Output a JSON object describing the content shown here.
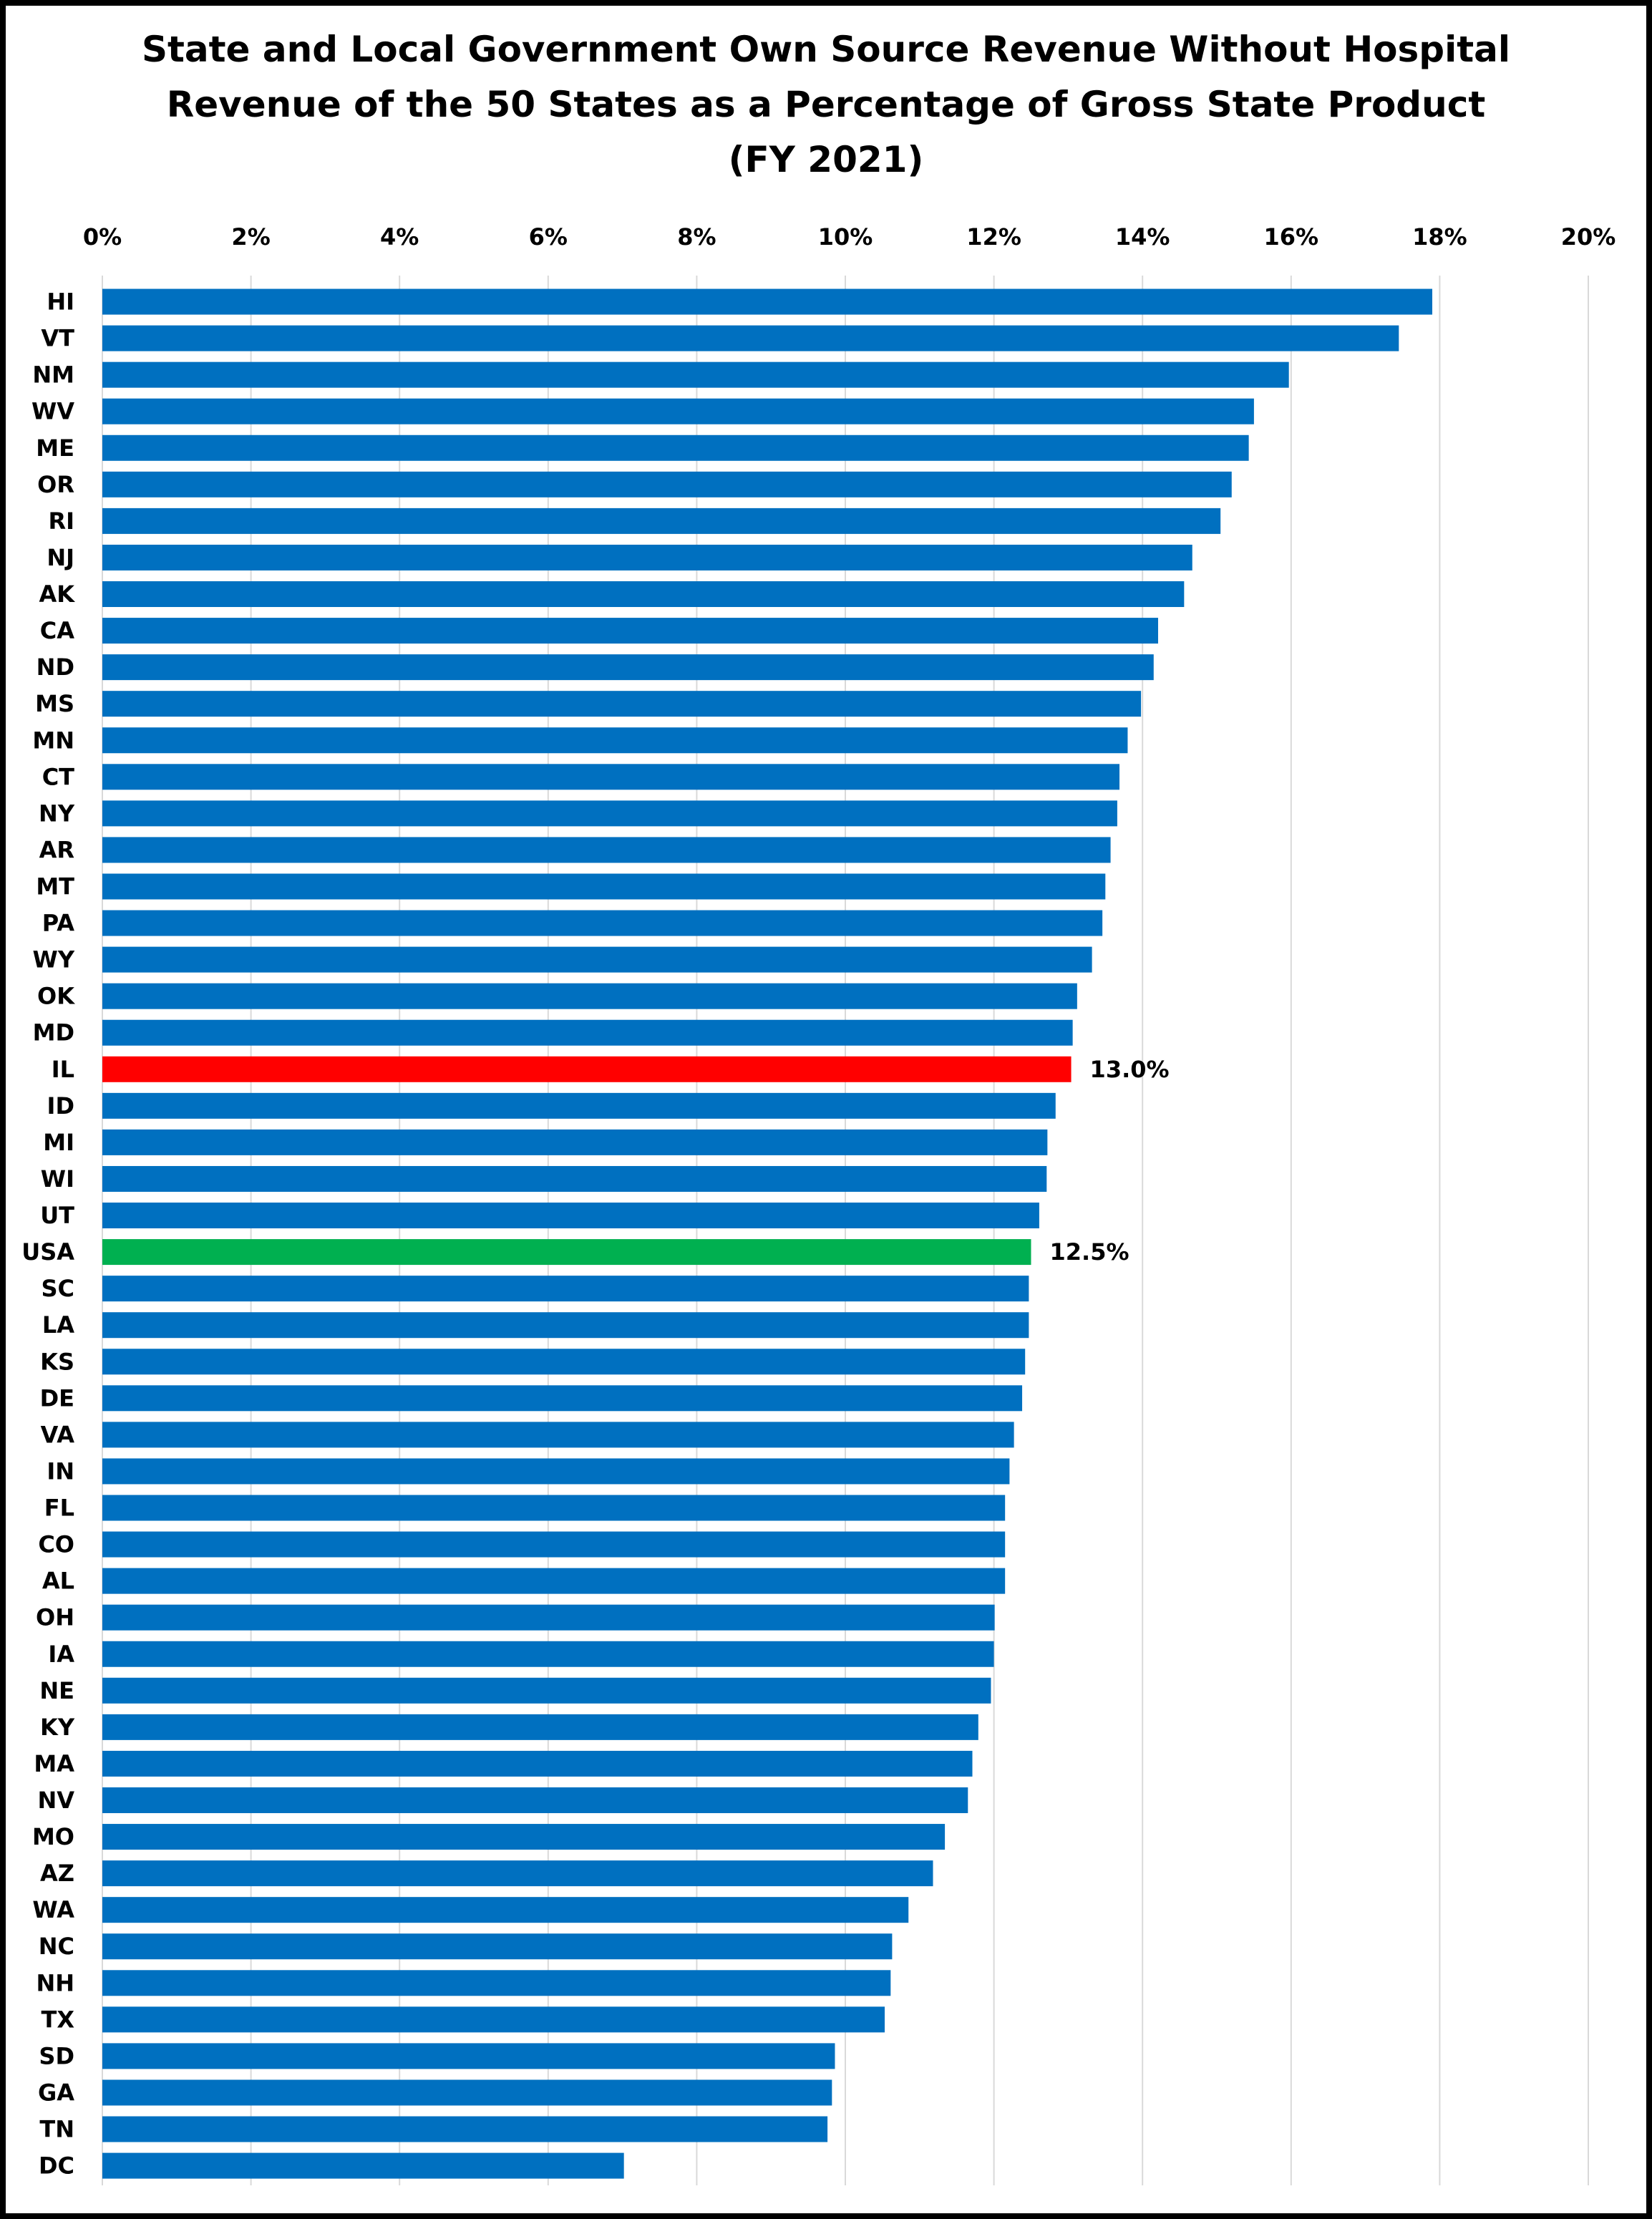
{
  "chart_data": {
    "type": "bar",
    "orientation": "horizontal",
    "title_lines": [
      "State and Local Government Own Source Revenue Without Hospital",
      "Revenue of the 50 States as a Percentage of Gross State Product",
      "(FY 2021)"
    ],
    "xlabel": "",
    "ylabel": "",
    "xlim": [
      0,
      20
    ],
    "x_unit": "percent",
    "x_ticks": [
      "0%",
      "2%",
      "4%",
      "6%",
      "8%",
      "10%",
      "12%",
      "14%",
      "16%",
      "18%",
      "20%"
    ],
    "x_axis_position": "top",
    "grid": true,
    "legend": "none",
    "categories": [
      "HI",
      "VT",
      "NM",
      "WV",
      "ME",
      "OR",
      "RI",
      "NJ",
      "AK",
      "CA",
      "ND",
      "MS",
      "MN",
      "CT",
      "NY",
      "AR",
      "MT",
      "PA",
      "WY",
      "OK",
      "MD",
      "IL",
      "ID",
      "MI",
      "WI",
      "UT",
      "USA",
      "SC",
      "LA",
      "KS",
      "DE",
      "VA",
      "IN",
      "FL",
      "CO",
      "AL",
      "OH",
      "IA",
      "NE",
      "KY",
      "MA",
      "NV",
      "MO",
      "AZ",
      "WA",
      "NC",
      "NH",
      "TX",
      "SD",
      "GA",
      "TN",
      "DC"
    ],
    "values": [
      17.9,
      17.45,
      15.97,
      15.5,
      15.43,
      15.2,
      15.05,
      14.67,
      14.56,
      14.21,
      14.15,
      13.98,
      13.8,
      13.69,
      13.66,
      13.57,
      13.5,
      13.46,
      13.32,
      13.12,
      13.06,
      13.04,
      12.83,
      12.72,
      12.71,
      12.61,
      12.5,
      12.47,
      12.47,
      12.42,
      12.38,
      12.27,
      12.21,
      12.15,
      12.15,
      12.15,
      12.01,
      12.0,
      11.96,
      11.79,
      11.71,
      11.65,
      11.34,
      11.18,
      10.85,
      10.63,
      10.61,
      10.53,
      9.86,
      9.82,
      9.76,
      7.02
    ],
    "colors": {
      "default": "#0070C0",
      "IL": "#FF0000",
      "USA": "#00B050",
      "grid": "#D9D9D9",
      "frame": "#000000"
    },
    "data_labels": [
      {
        "category": "IL",
        "text": "13.0%"
      },
      {
        "category": "USA",
        "text": "12.5%"
      }
    ]
  }
}
